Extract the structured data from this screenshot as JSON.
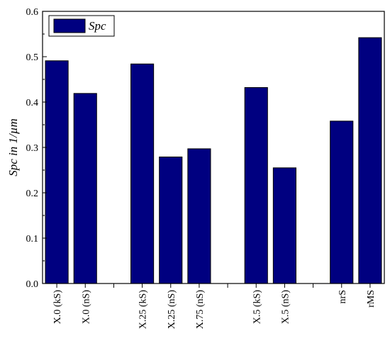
{
  "chart_data": {
    "type": "bar",
    "slots": [
      "X.0 (kS)",
      "X.0 (nS)",
      "",
      "X.25 (kS)",
      "X.25 (nS)",
      "X.75 (nS)",
      "",
      "X.5 (kS)",
      "X.5 (nS)",
      "",
      "nrS",
      "rMS"
    ],
    "categories": [
      "X.0 (kS)",
      "X.0 (nS)",
      "X.25 (kS)",
      "X.25 (nS)",
      "X.75 (nS)",
      "X.5 (kS)",
      "X.5 (nS)",
      "nrS",
      "rMS"
    ],
    "series": [
      {
        "name": "Spc",
        "values": [
          0.491,
          0.419,
          0.484,
          0.279,
          0.297,
          0.432,
          0.255,
          0.358,
          0.542
        ]
      }
    ],
    "title": "",
    "xlabel": "",
    "ylabel": "Spc in 1/µm",
    "ylim": [
      0.0,
      0.6
    ],
    "yticks": [
      "0.0",
      "0.1",
      "0.2",
      "0.3",
      "0.4",
      "0.5",
      "0.6"
    ],
    "legend": {
      "position": "top-left",
      "entries": [
        "Spc"
      ]
    },
    "grid": false,
    "colors": {
      "bar_fill": "#000080",
      "bar_stroke": "#000000",
      "axis": "#000000"
    }
  }
}
